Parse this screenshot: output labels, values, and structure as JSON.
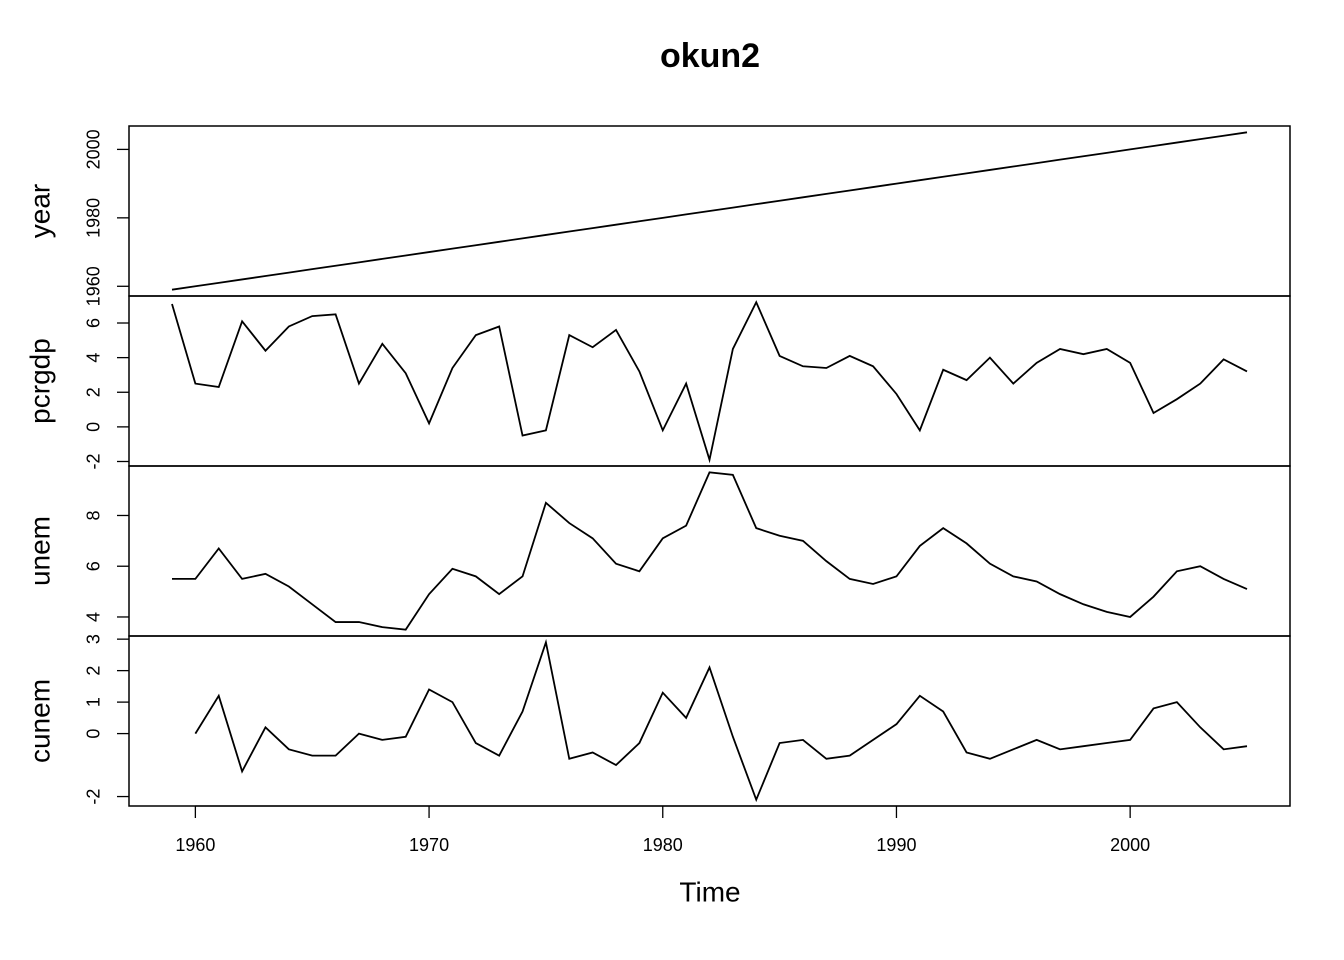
{
  "chart_data": {
    "type": "line",
    "title": "okun2",
    "x_label": "Time",
    "color": "#000000",
    "x": [
      1959,
      1960,
      1961,
      1962,
      1963,
      1964,
      1965,
      1966,
      1967,
      1968,
      1969,
      1970,
      1971,
      1972,
      1973,
      1974,
      1975,
      1976,
      1977,
      1978,
      1979,
      1980,
      1981,
      1982,
      1983,
      1984,
      1985,
      1986,
      1987,
      1988,
      1989,
      1990,
      1991,
      1992,
      1993,
      1994,
      1995,
      1996,
      1997,
      1998,
      1999,
      2000,
      2001,
      2002,
      2003,
      2004,
      2005
    ],
    "xlim": [
      1957.16,
      2006.84
    ],
    "xticks": [
      1960,
      1970,
      1980,
      1990,
      2000
    ],
    "panels": [
      {
        "name": "year",
        "ylim": [
          1957.16,
          2006.84
        ],
        "yticks": [
          1960,
          1980,
          2000
        ],
        "values": [
          1959,
          1960,
          1961,
          1962,
          1963,
          1964,
          1965,
          1966,
          1967,
          1968,
          1969,
          1970,
          1971,
          1972,
          1973,
          1974,
          1975,
          1976,
          1977,
          1978,
          1979,
          1980,
          1981,
          1982,
          1983,
          1984,
          1985,
          1986,
          1987,
          1988,
          1989,
          1990,
          1991,
          1992,
          1993,
          1994,
          1995,
          1996,
          1997,
          1998,
          1999,
          2000,
          2001,
          2002,
          2003,
          2004,
          2005
        ]
      },
      {
        "name": "pcrgdp",
        "ylim": [
          -2.26,
          7.56
        ],
        "yticks": [
          -2,
          0,
          2,
          4,
          6
        ],
        "values": [
          7.1,
          2.5,
          2.3,
          6.1,
          4.4,
          5.8,
          6.4,
          6.5,
          2.5,
          4.8,
          3.1,
          0.2,
          3.4,
          5.3,
          5.8,
          -0.5,
          -0.2,
          5.3,
          4.6,
          5.6,
          3.2,
          -0.2,
          2.5,
          -1.9,
          4.5,
          7.2,
          4.1,
          3.5,
          3.4,
          4.1,
          3.5,
          1.9,
          -0.2,
          3.3,
          2.7,
          4.0,
          2.5,
          3.7,
          4.5,
          4.2,
          4.5,
          3.7,
          0.8,
          1.6,
          2.5,
          3.9,
          3.2
        ]
      },
      {
        "name": "unem",
        "ylim": [
          3.25,
          9.95
        ],
        "yticks": [
          4,
          6,
          8
        ],
        "values": [
          5.5,
          5.5,
          6.7,
          5.5,
          5.7,
          5.2,
          4.5,
          3.8,
          3.8,
          3.6,
          3.5,
          4.9,
          5.9,
          5.6,
          4.9,
          5.6,
          8.5,
          7.7,
          7.1,
          6.1,
          5.8,
          7.1,
          7.6,
          9.7,
          9.6,
          7.5,
          7.2,
          7.0,
          6.2,
          5.5,
          5.3,
          5.6,
          6.8,
          7.5,
          6.9,
          6.1,
          5.6,
          5.4,
          4.9,
          4.5,
          4.2,
          4.0,
          4.8,
          5.8,
          6.0,
          5.5,
          5.1
        ]
      },
      {
        "name": "cunem",
        "ylim": [
          -2.3,
          3.1
        ],
        "yticks": [
          -2,
          0,
          1,
          2,
          3
        ],
        "values": [
          null,
          0,
          1.2,
          -1.2,
          0.2,
          -0.5,
          -0.7,
          -0.7,
          0,
          -0.2,
          -0.1,
          1.4,
          1.0,
          -0.3,
          -0.7,
          0.7,
          2.9,
          -0.8,
          -0.6,
          -1.0,
          -0.3,
          1.3,
          0.5,
          2.1,
          -0.1,
          -2.1,
          -0.3,
          -0.2,
          -0.8,
          -0.7,
          -0.2,
          0.3,
          1.2,
          0.7,
          -0.6,
          -0.8,
          -0.5,
          -0.2,
          -0.5,
          -0.4,
          -0.3,
          -0.2,
          0.8,
          1.0,
          0.2,
          -0.5,
          -0.4
        ]
      }
    ]
  }
}
